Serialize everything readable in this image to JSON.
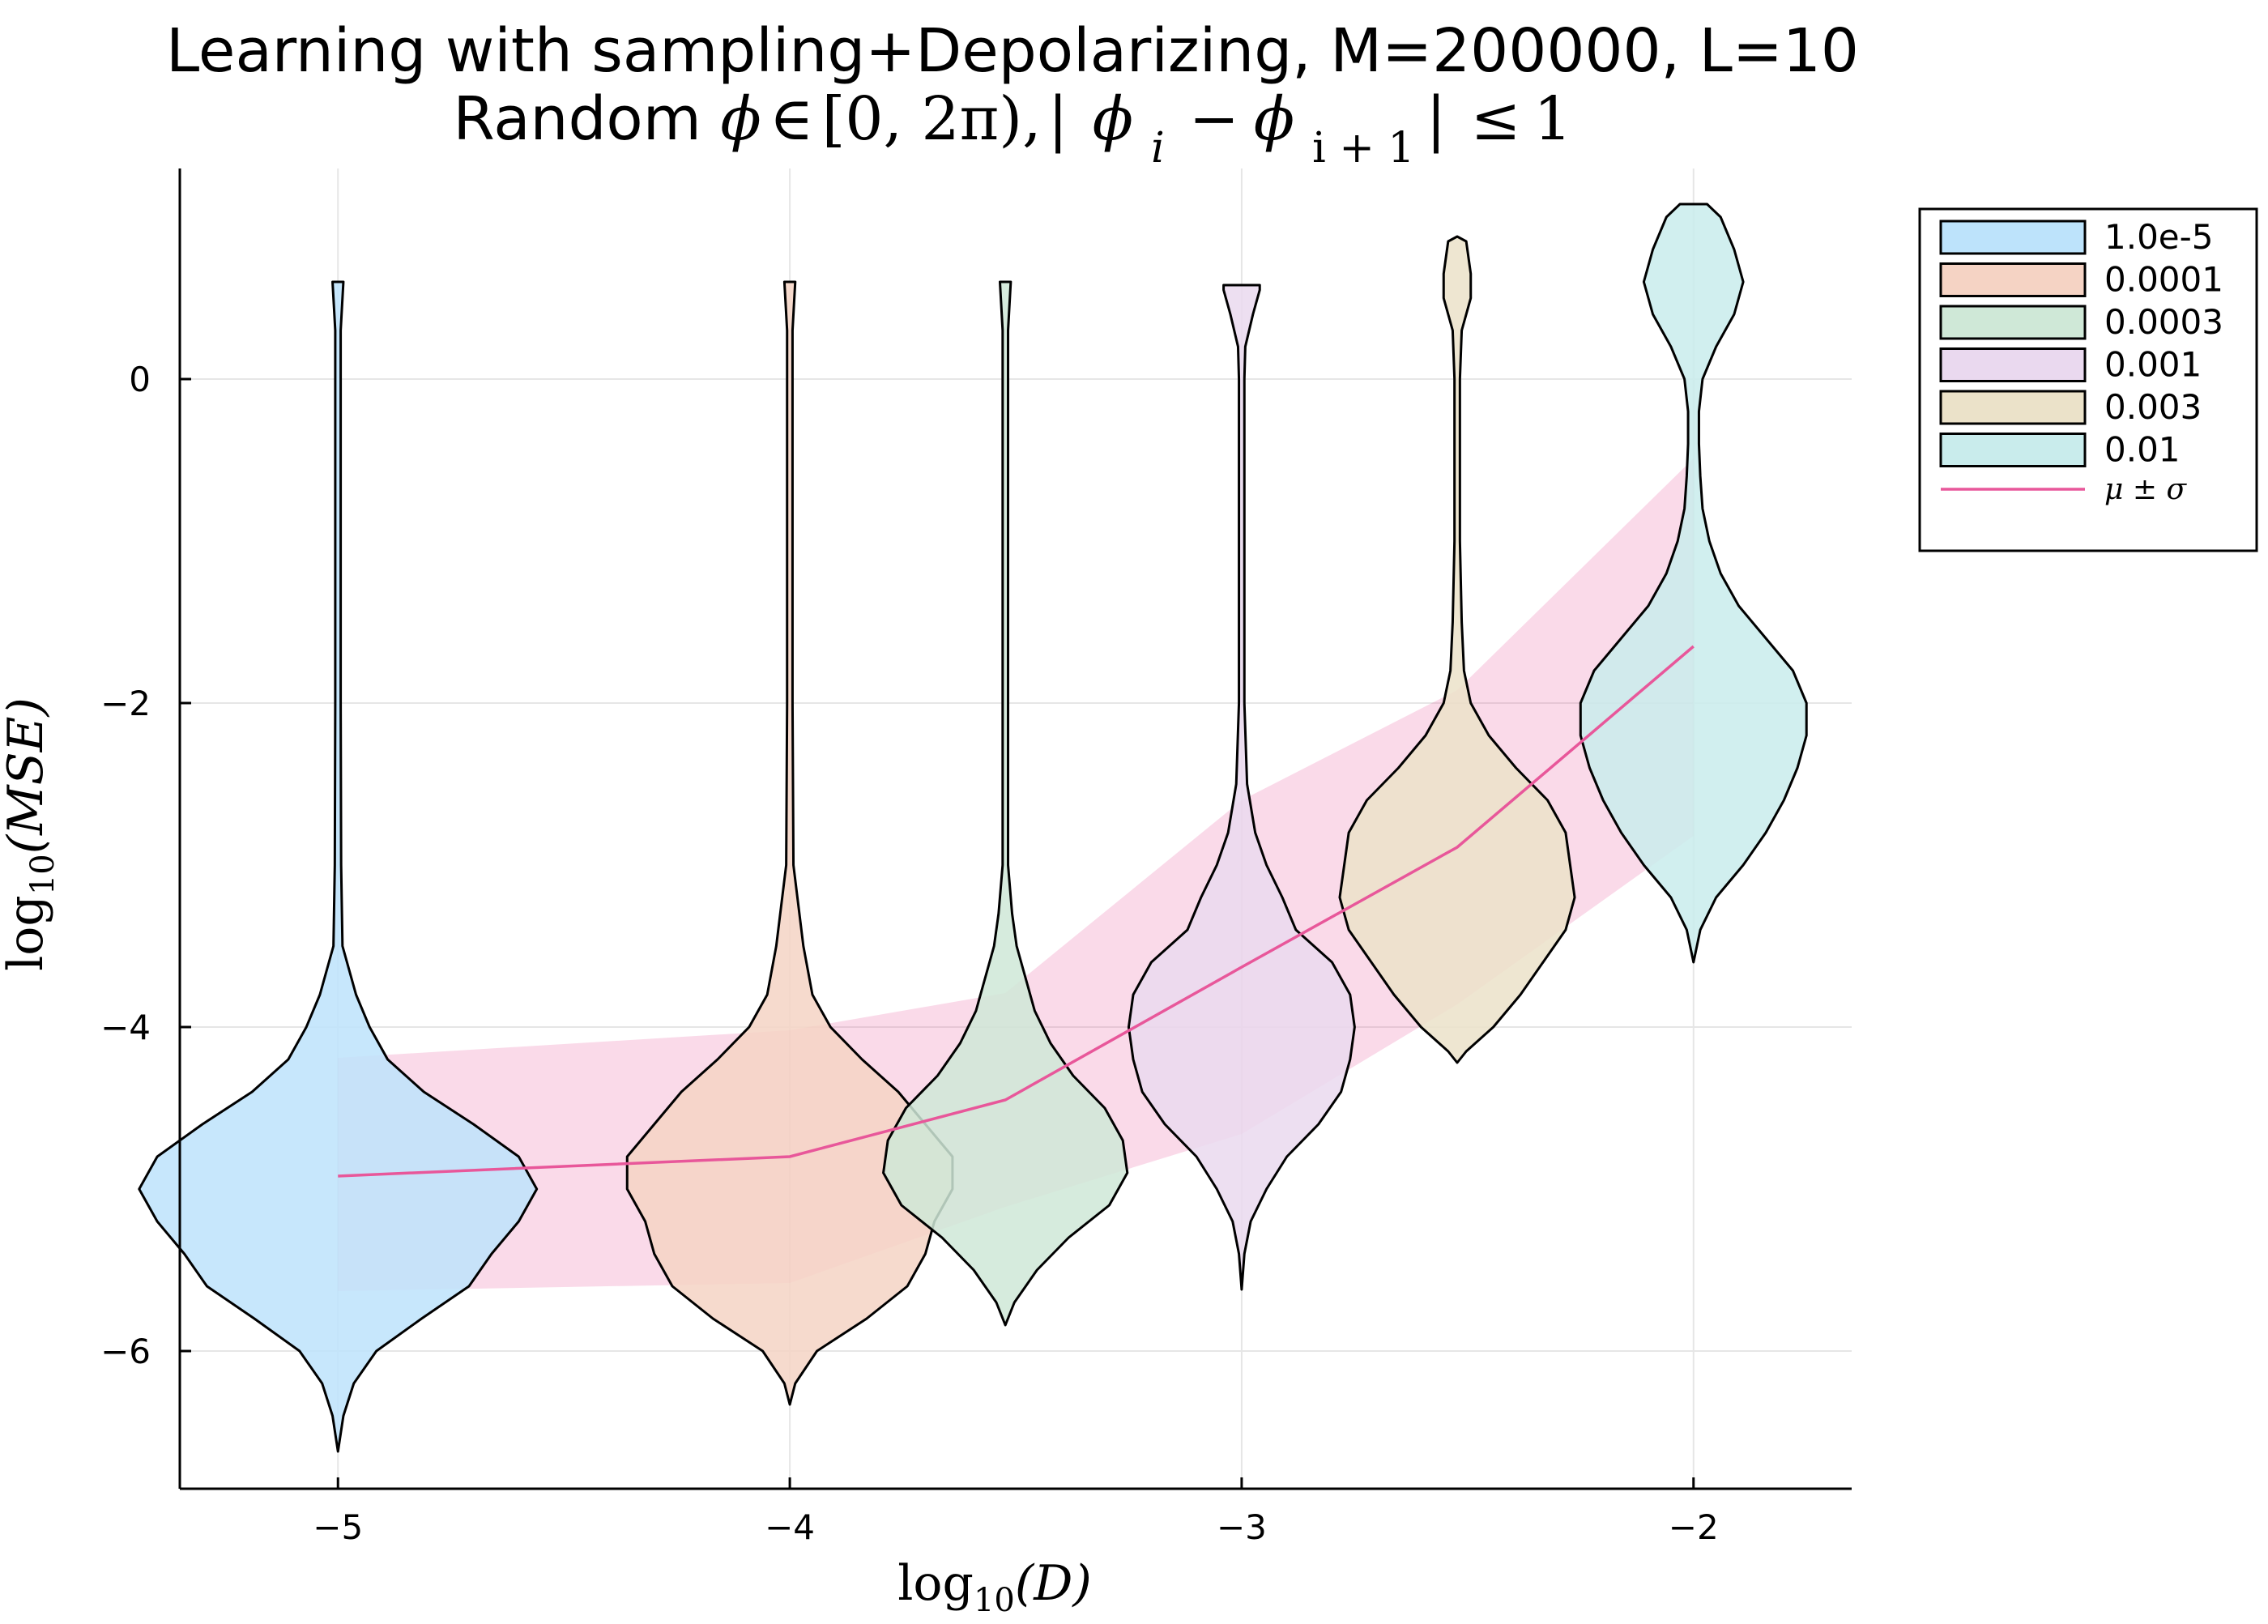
{
  "chart_data": {
    "type": "violin",
    "title": "Learning with sampling+Depolarizing, M=200000, L=10",
    "subtitle": "Random ϕ ∈ [0, 2π), | ϕ_i − ϕ_{i + 1} | ≤ 1",
    "subtitle_parts": {
      "prefix": "Random ",
      "phi": "ϕ",
      "in": "∈",
      "interval": "[0, 2π),",
      "bar": "|",
      "minus": "−",
      "sub_i": "i",
      "sub_i1": "i + 1",
      "leq": "≤",
      "one": "1"
    },
    "xlabel": {
      "base": "log",
      "sub": "10",
      "arg": "(D)"
    },
    "ylabel": {
      "base": "log",
      "sub": "10",
      "arg": "(MSE)"
    },
    "xlim": [
      -5.35,
      -1.65
    ],
    "ylim": [
      -6.85,
      1.3
    ],
    "xticks": [
      -5,
      -4,
      -3,
      -2
    ],
    "xtick_labels": [
      "−5",
      "−4",
      "−3",
      "−2"
    ],
    "yticks": [
      0,
      -2,
      -4,
      -6
    ],
    "ytick_labels": [
      "0",
      "−2",
      "−4",
      "−6"
    ],
    "grid": true,
    "legend_position": "top-right-outside",
    "mean_band_color": "#e8579a",
    "series": [
      {
        "name": "1.0e-5",
        "color": "#bde3fb",
        "x": -5.0,
        "halfwidth": 0.26,
        "profile": [
          [
            -6.62,
            0.0
          ],
          [
            -6.4,
            0.012
          ],
          [
            -6.2,
            0.035
          ],
          [
            -6.0,
            0.085
          ],
          [
            -5.8,
            0.185
          ],
          [
            -5.6,
            0.29
          ],
          [
            -5.4,
            0.34
          ],
          [
            -5.2,
            0.4
          ],
          [
            -5.0,
            0.44
          ],
          [
            -4.8,
            0.4
          ],
          [
            -4.6,
            0.3
          ],
          [
            -4.4,
            0.19
          ],
          [
            -4.2,
            0.11
          ],
          [
            -4.0,
            0.07
          ],
          [
            -3.8,
            0.04
          ],
          [
            -3.5,
            0.01
          ],
          [
            -3.0,
            0.007
          ],
          [
            -2.0,
            0.006
          ],
          [
            0.0,
            0.006
          ],
          [
            0.3,
            0.006
          ],
          [
            0.6,
            0.012
          ]
        ],
        "mean": -4.92,
        "sigma_low": -5.63,
        "sigma_high": -4.19
      },
      {
        "name": "0.0001",
        "color": "#f5d3c4",
        "x": -4.0,
        "halfwidth": 0.26,
        "profile": [
          [
            -6.33,
            0.0
          ],
          [
            -6.2,
            0.012
          ],
          [
            -6.0,
            0.06
          ],
          [
            -5.8,
            0.17
          ],
          [
            -5.6,
            0.26
          ],
          [
            -5.4,
            0.3
          ],
          [
            -5.2,
            0.32
          ],
          [
            -5.0,
            0.36
          ],
          [
            -4.8,
            0.36
          ],
          [
            -4.6,
            0.3
          ],
          [
            -4.4,
            0.24
          ],
          [
            -4.2,
            0.16
          ],
          [
            -4.0,
            0.09
          ],
          [
            -3.8,
            0.05
          ],
          [
            -3.5,
            0.03
          ],
          [
            -3.0,
            0.008
          ],
          [
            -2.0,
            0.006
          ],
          [
            0.0,
            0.006
          ],
          [
            0.3,
            0.006
          ],
          [
            0.6,
            0.012
          ]
        ],
        "mean": -4.8,
        "sigma_low": -5.58,
        "sigma_high": -4.02
      },
      {
        "name": "0.0003",
        "color": "#cfe8d7",
        "x": -3.523,
        "halfwidth": 0.26,
        "profile": [
          [
            -5.84,
            0.0
          ],
          [
            -5.7,
            0.02
          ],
          [
            -5.5,
            0.07
          ],
          [
            -5.3,
            0.14
          ],
          [
            -5.1,
            0.23
          ],
          [
            -4.9,
            0.27
          ],
          [
            -4.7,
            0.26
          ],
          [
            -4.5,
            0.22
          ],
          [
            -4.3,
            0.15
          ],
          [
            -4.1,
            0.1
          ],
          [
            -3.9,
            0.065
          ],
          [
            -3.7,
            0.045
          ],
          [
            -3.5,
            0.025
          ],
          [
            -3.3,
            0.015
          ],
          [
            -3.0,
            0.006
          ],
          [
            -2.0,
            0.006
          ],
          [
            0.0,
            0.006
          ],
          [
            0.3,
            0.006
          ],
          [
            0.6,
            0.012
          ]
        ],
        "mean": -4.45,
        "sigma_low": -5.11,
        "sigma_high": -3.79
      },
      {
        "name": "0.001",
        "color": "#ead9ef",
        "x": -3.0,
        "halfwidth": 0.26,
        "profile": [
          [
            -5.62,
            0.0
          ],
          [
            -5.4,
            0.006
          ],
          [
            -5.2,
            0.02
          ],
          [
            -5.0,
            0.055
          ],
          [
            -4.8,
            0.1
          ],
          [
            -4.6,
            0.17
          ],
          [
            -4.4,
            0.22
          ],
          [
            -4.2,
            0.24
          ],
          [
            -4.0,
            0.25
          ],
          [
            -3.8,
            0.24
          ],
          [
            -3.6,
            0.2
          ],
          [
            -3.4,
            0.12
          ],
          [
            -3.2,
            0.09
          ],
          [
            -3.0,
            0.055
          ],
          [
            -2.8,
            0.03
          ],
          [
            -2.5,
            0.012
          ],
          [
            -2.0,
            0.006
          ],
          [
            0.0,
            0.006
          ],
          [
            0.2,
            0.008
          ],
          [
            0.4,
            0.025
          ],
          [
            0.55,
            0.04
          ],
          [
            0.58,
            0.04
          ]
        ],
        "mean": -3.63,
        "sigma_low": -4.66,
        "sigma_high": -2.6
      },
      {
        "name": "0.003",
        "color": "#ebe2c9",
        "x": -2.523,
        "halfwidth": 0.26,
        "profile": [
          [
            -4.22,
            0.0
          ],
          [
            -4.15,
            0.02
          ],
          [
            -4.0,
            0.08
          ],
          [
            -3.8,
            0.14
          ],
          [
            -3.6,
            0.19
          ],
          [
            -3.4,
            0.24
          ],
          [
            -3.2,
            0.26
          ],
          [
            -3.0,
            0.25
          ],
          [
            -2.8,
            0.24
          ],
          [
            -2.6,
            0.2
          ],
          [
            -2.4,
            0.13
          ],
          [
            -2.2,
            0.07
          ],
          [
            -2.0,
            0.03
          ],
          [
            -1.8,
            0.015
          ],
          [
            -1.5,
            0.01
          ],
          [
            -1.0,
            0.006
          ],
          [
            0.0,
            0.006
          ],
          [
            0.3,
            0.01
          ],
          [
            0.5,
            0.03
          ],
          [
            0.65,
            0.03
          ],
          [
            0.85,
            0.02
          ],
          [
            0.88,
            0.0
          ]
        ],
        "mean": -2.89,
        "sigma_low": -3.86,
        "sigma_high": -1.92
      },
      {
        "name": "0.01",
        "color": "#c9ecec",
        "x": -2.0,
        "halfwidth": 0.26,
        "profile": [
          [
            -3.6,
            0.0
          ],
          [
            -3.4,
            0.015
          ],
          [
            -3.2,
            0.05
          ],
          [
            -3.0,
            0.11
          ],
          [
            -2.8,
            0.16
          ],
          [
            -2.6,
            0.2
          ],
          [
            -2.4,
            0.23
          ],
          [
            -2.2,
            0.25
          ],
          [
            -2.0,
            0.25
          ],
          [
            -1.8,
            0.22
          ],
          [
            -1.6,
            0.16
          ],
          [
            -1.4,
            0.1
          ],
          [
            -1.2,
            0.06
          ],
          [
            -1.0,
            0.035
          ],
          [
            -0.8,
            0.02
          ],
          [
            -0.6,
            0.015
          ],
          [
            -0.4,
            0.012
          ],
          [
            -0.2,
            0.012
          ],
          [
            0.0,
            0.02
          ],
          [
            0.2,
            0.05
          ],
          [
            0.4,
            0.09
          ],
          [
            0.6,
            0.11
          ],
          [
            0.8,
            0.09
          ],
          [
            1.0,
            0.06
          ],
          [
            1.08,
            0.03
          ]
        ],
        "mean": -1.65,
        "sigma_low": -2.82,
        "sigma_high": -0.49
      }
    ],
    "mean_sigma_label": "μ ± σ"
  }
}
